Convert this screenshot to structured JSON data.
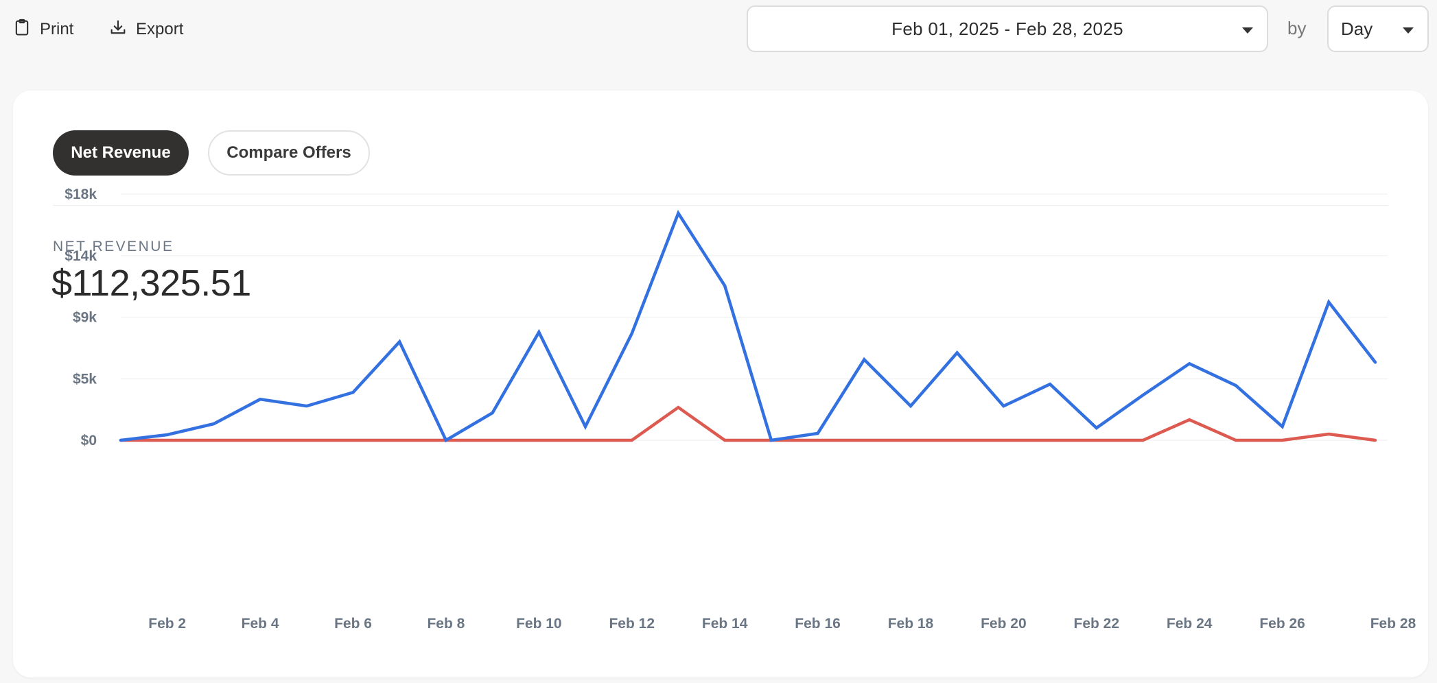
{
  "toolbar": {
    "print_label": "Print",
    "print_icon": "clipboard-icon",
    "export_label": "Export",
    "export_icon": "download-icon"
  },
  "filters": {
    "date_range": "Feb 01, 2025 - Feb 28, 2025",
    "by_label": "by",
    "granularity": "Day"
  },
  "tabs": [
    {
      "label": "Net Revenue",
      "active": true
    },
    {
      "label": "Compare Offers",
      "active": false
    }
  ],
  "metric": {
    "label": "NET REVENUE",
    "value": "$112,325.51"
  },
  "colors": {
    "series_primary": "#3370e0",
    "series_secondary": "#dd5a50",
    "active_tab_bg": "#33312f",
    "axis_text": "#6b7684"
  },
  "chart_data": {
    "type": "line",
    "x": [
      "Feb 1",
      "Feb 2",
      "Feb 3",
      "Feb 4",
      "Feb 5",
      "Feb 6",
      "Feb 7",
      "Feb 8",
      "Feb 9",
      "Feb 10",
      "Feb 11",
      "Feb 12",
      "Feb 13",
      "Feb 14",
      "Feb 15",
      "Feb 16",
      "Feb 17",
      "Feb 18",
      "Feb 19",
      "Feb 20",
      "Feb 21",
      "Feb 22",
      "Feb 23",
      "Feb 24",
      "Feb 25",
      "Feb 26",
      "Feb 27",
      "Feb 28"
    ],
    "x_tick_labels": [
      "Feb 2",
      "Feb 4",
      "Feb 6",
      "Feb 8",
      "Feb 10",
      "Feb 12",
      "Feb 14",
      "Feb 16",
      "Feb 18",
      "Feb 20",
      "Feb 22",
      "Feb 24",
      "Feb 26",
      "Feb 28"
    ],
    "y_tick_labels": [
      "$0",
      "$5k",
      "$9k",
      "$14k",
      "$18k"
    ],
    "ylim": [
      0,
      18000
    ],
    "grid": true,
    "series": [
      {
        "color": "#3370e0",
        "values": [
          0,
          400,
          1200,
          3000,
          2500,
          3500,
          7200,
          0,
          2000,
          7900,
          1000,
          7800,
          16600,
          11300,
          0,
          500,
          5900,
          2500,
          6400,
          2500,
          4100,
          900,
          3300,
          5600,
          4000,
          1000,
          10100,
          5700
        ]
      },
      {
        "color": "#dd5a50",
        "values": [
          0,
          0,
          0,
          0,
          0,
          0,
          0,
          0,
          0,
          0,
          0,
          0,
          2400,
          0,
          0,
          0,
          0,
          0,
          0,
          0,
          0,
          0,
          0,
          1500,
          0,
          0,
          450,
          0
        ]
      }
    ]
  }
}
